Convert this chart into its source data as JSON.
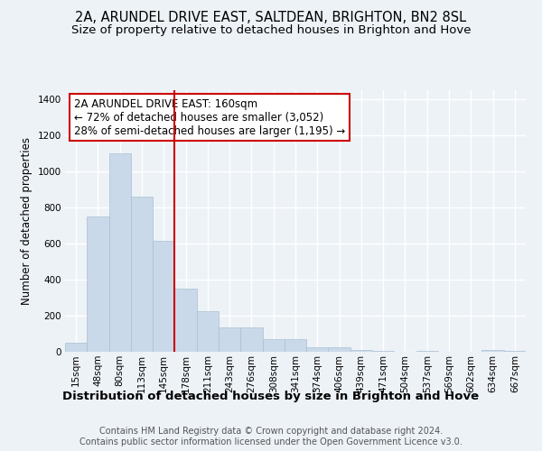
{
  "title": "2A, ARUNDEL DRIVE EAST, SALTDEAN, BRIGHTON, BN2 8SL",
  "subtitle": "Size of property relative to detached houses in Brighton and Hove",
  "xlabel": "Distribution of detached houses by size in Brighton and Hove",
  "ylabel": "Number of detached properties",
  "categories": [
    "15sqm",
    "48sqm",
    "80sqm",
    "113sqm",
    "145sqm",
    "178sqm",
    "211sqm",
    "243sqm",
    "276sqm",
    "308sqm",
    "341sqm",
    "374sqm",
    "406sqm",
    "439sqm",
    "471sqm",
    "504sqm",
    "537sqm",
    "569sqm",
    "602sqm",
    "634sqm",
    "667sqm"
  ],
  "values": [
    50,
    750,
    1100,
    860,
    615,
    350,
    225,
    135,
    135,
    70,
    70,
    25,
    25,
    10,
    5,
    0,
    5,
    0,
    0,
    10,
    5
  ],
  "bar_color": "#c9d9ea",
  "bar_edge_color": "#aabfcf",
  "red_line_x": 4.5,
  "annotation_text": "2A ARUNDEL DRIVE EAST: 160sqm\n← 72% of detached houses are smaller (3,052)\n28% of semi-detached houses are larger (1,195) →",
  "annotation_box_color": "#ffffff",
  "annotation_box_edge_color": "#cc0000",
  "ylim": [
    0,
    1450
  ],
  "yticks": [
    0,
    200,
    400,
    600,
    800,
    1000,
    1200,
    1400
  ],
  "footnote": "Contains HM Land Registry data © Crown copyright and database right 2024.\nContains public sector information licensed under the Open Government Licence v3.0.",
  "background_color": "#edf2f7",
  "grid_color": "#ffffff",
  "title_fontsize": 10.5,
  "subtitle_fontsize": 9.5,
  "xlabel_fontsize": 9.5,
  "ylabel_fontsize": 8.5,
  "tick_fontsize": 7.5,
  "annotation_fontsize": 8.5,
  "footnote_fontsize": 7.0
}
